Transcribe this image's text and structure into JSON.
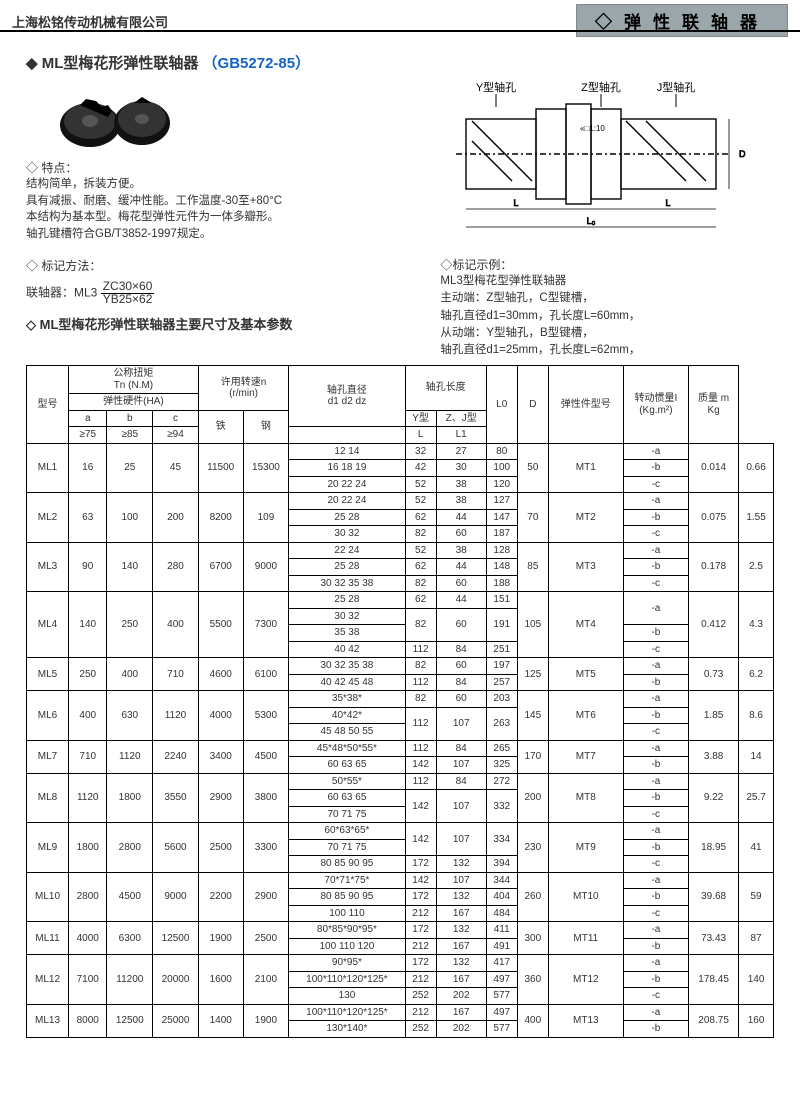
{
  "header": {
    "company": "上海松铭传动机械有限公司",
    "category": "◇弹性联轴器"
  },
  "title": {
    "name": "◆ ML型梅花形弹性联轴器",
    "std": "（GB5272-85）"
  },
  "features": {
    "head": "◇ 特点：",
    "lines": [
      "结构简单，拆装方便。",
      "具有减振、耐磨、缓冲性能。工作温度-30至+80°C",
      "本结构为基本型。梅花型弹性元件为一体多瓣形。",
      "轴孔键槽符合GB/T3852-1997规定。"
    ]
  },
  "marking": {
    "head": "◇ 标记方法：",
    "label": "联轴器：ML3",
    "num": "ZC30×60",
    "den": "YB25×62"
  },
  "subhead": "◇ ML型梅花形弹性联轴器主要尺寸及基本参数",
  "example": {
    "head": "◇标记示例：",
    "lines": [
      "ML3型梅花型弹性联轴器",
      "主动端：Z型轴孔，C型键槽，",
      "轴孔直径d1=30mm，孔长度L=60mm，",
      "从动端：Y型轴孔，B型键槽，",
      "轴孔直径d1=25mm，孔长度L=62mm，"
    ]
  },
  "diagram_labels": {
    "y": "Y型轴孔",
    "z": "Z型轴孔",
    "j": "J型轴孔"
  },
  "table": {
    "headers": {
      "model": "型号",
      "torque": "公称扭矩",
      "tn": "Tn (N.M)",
      "hard": "弹性硬件(HA)",
      "speed": "许用转速n",
      "rmin": "(r/min)",
      "bore": "轴孔直径",
      "d123": "d1 d2 dz",
      "borelen": "轴孔长度",
      "y": "Y型",
      "zj": "Z、J型",
      "l": "L",
      "l1": "L1",
      "l0": "L0",
      "d": "D",
      "elastomer": "弹性件型号",
      "inertia": "转动惯量I",
      "inertia_u": "(Kg.m²)",
      "mass": "质量 m",
      "mass_u": "Kg",
      "a": "a",
      "b": "b",
      "c": "c",
      "a75": "≥75",
      "b85": "≥85",
      "c94": "≥94",
      "iron": "铁",
      "steel": "钢"
    },
    "rows": [
      {
        "model": "ML1",
        "a": "16",
        "b": "25",
        "c": "45",
        "iron": "11500",
        "steel": "15300",
        "sub": [
          [
            "12 14",
            "32",
            "27",
            "80"
          ],
          [
            "16 18 19",
            "42",
            "30",
            "100"
          ],
          [
            "20 22 24",
            "52",
            "38",
            "120"
          ]
        ],
        "d": "50",
        "mt": "MT1",
        "i": "0.014",
        "m": "0.66"
      },
      {
        "model": "ML2",
        "a": "63",
        "b": "100",
        "c": "200",
        "iron": "8200",
        "steel": "109",
        "sub": [
          [
            "20 22 24",
            "52",
            "38",
            "127"
          ],
          [
            "25 28",
            "62",
            "44",
            "147"
          ],
          [
            "30 32",
            "82",
            "60",
            "187"
          ]
        ],
        "d": "70",
        "mt": "MT2",
        "i": "0.075",
        "m": "1.55"
      },
      {
        "model": "ML3",
        "a": "90",
        "b": "140",
        "c": "280",
        "iron": "6700",
        "steel": "9000",
        "sub": [
          [
            "22 24",
            "52",
            "38",
            "128"
          ],
          [
            "25 28",
            "62",
            "44",
            "148"
          ],
          [
            "30 32 35 38",
            "82",
            "60",
            "188"
          ]
        ],
        "d": "85",
        "mt": "MT3",
        "i": "0.178",
        "m": "2.5"
      },
      {
        "model": "ML4",
        "a": "140",
        "b": "250",
        "c": "400",
        "iron": "5500",
        "steel": "7300",
        "sub": [
          [
            "25 28",
            "62",
            "44",
            "151"
          ],
          [
            "30 32",
            "82",
            "60",
            "191"
          ],
          [
            "35 38",
            null,
            null,
            null
          ],
          [
            "40 42",
            "112",
            "84",
            "251"
          ]
        ],
        "merge34": true,
        "d": "105",
        "mt": "MT4",
        "i": "0.412",
        "m": "4.3"
      },
      {
        "model": "ML5",
        "a": "250",
        "b": "400",
        "c": "710",
        "iron": "4600",
        "steel": "6100",
        "sub": [
          [
            "30 32 35 38",
            "82",
            "60",
            "197"
          ],
          [
            "40 42 45 48",
            "112",
            "84",
            "257"
          ]
        ],
        "d": "125",
        "mt": "MT5",
        "i": "0.73",
        "m": "6.2",
        "abc_span": 2
      },
      {
        "model": "ML6",
        "a": "400",
        "b": "630",
        "c": "1120",
        "iron": "4000",
        "steel": "5300",
        "sub": [
          [
            "35*38*",
            "82",
            "60",
            "203"
          ],
          [
            "40*42*",
            "112",
            "107",
            "263"
          ],
          [
            "45 48 50 55",
            null,
            null,
            null
          ]
        ],
        "merge23": true,
        "d": "145",
        "mt": "MT6",
        "i": "1.85",
        "m": "8.6"
      },
      {
        "model": "ML7",
        "a": "710",
        "b": "1120",
        "c": "2240",
        "iron": "3400",
        "steel": "4500",
        "sub": [
          [
            "45*48*50*55*",
            "112",
            "84",
            "265"
          ],
          [
            "60 63 65",
            "142",
            "107",
            "325"
          ]
        ],
        "d": "170",
        "mt": "MT7",
        "i": "3.88",
        "m": "14",
        "abc_span": 2
      },
      {
        "model": "ML8",
        "a": "1120",
        "b": "1800",
        "c": "3550",
        "iron": "2900",
        "steel": "3800",
        "sub": [
          [
            "50*55*",
            "112",
            "84",
            "272"
          ],
          [
            "60 63 65",
            "142",
            "107",
            "332"
          ],
          [
            "70 71 75",
            null,
            null,
            null
          ]
        ],
        "merge23": true,
        "d": "200",
        "mt": "MT8",
        "i": "9.22",
        "m": "25.7"
      },
      {
        "model": "ML9",
        "a": "1800",
        "b": "2800",
        "c": "5600",
        "iron": "2500",
        "steel": "3300",
        "sub": [
          [
            "60*63*65*",
            "142",
            "107",
            "334"
          ],
          [
            "70 71 75",
            null,
            null,
            null
          ],
          [
            "80 85 90 95",
            "172",
            "132",
            "394"
          ]
        ],
        "merge12": true,
        "d": "230",
        "mt": "MT9",
        "i": "18.95",
        "m": "41"
      },
      {
        "model": "ML10",
        "a": "2800",
        "b": "4500",
        "c": "9000",
        "iron": "2200",
        "steel": "2900",
        "sub": [
          [
            "70*71*75*",
            "142",
            "107",
            "344"
          ],
          [
            "80 85 90 95",
            "172",
            "132",
            "404"
          ],
          [
            "100 110",
            "212",
            "167",
            "484"
          ]
        ],
        "d": "260",
        "mt": "MT10",
        "i": "39.68",
        "m": "59"
      },
      {
        "model": "ML11",
        "a": "4000",
        "b": "6300",
        "c": "12500",
        "iron": "1900",
        "steel": "2500",
        "sub": [
          [
            "80*85*90*95*",
            "172",
            "132",
            "411"
          ],
          [
            "100 110 120",
            "212",
            "167",
            "491"
          ]
        ],
        "d": "300",
        "mt": "MT11",
        "i": "73.43",
        "m": "87",
        "abc_span": 2
      },
      {
        "model": "ML12",
        "a": "7100",
        "b": "11200",
        "c": "20000",
        "iron": "1600",
        "steel": "2100",
        "sub": [
          [
            "90*95*",
            "172",
            "132",
            "417"
          ],
          [
            "100*110*120*125*",
            "212",
            "167",
            "497"
          ],
          [
            "130",
            "252",
            "202",
            "577"
          ]
        ],
        "d": "360",
        "mt": "MT12",
        "i": "178.45",
        "m": "140"
      },
      {
        "model": "ML13",
        "a": "8000",
        "b": "12500",
        "c": "25000",
        "iron": "1400",
        "steel": "1900",
        "sub": [
          [
            "100*110*120*125*",
            "212",
            "167",
            "497"
          ],
          [
            "130*140*",
            "252",
            "202",
            "577"
          ]
        ],
        "d": "400",
        "mt": "MT13",
        "i": "208.75",
        "m": "160",
        "abc_span": 2
      }
    ],
    "abc": [
      "-a",
      "-b",
      "-c"
    ]
  }
}
